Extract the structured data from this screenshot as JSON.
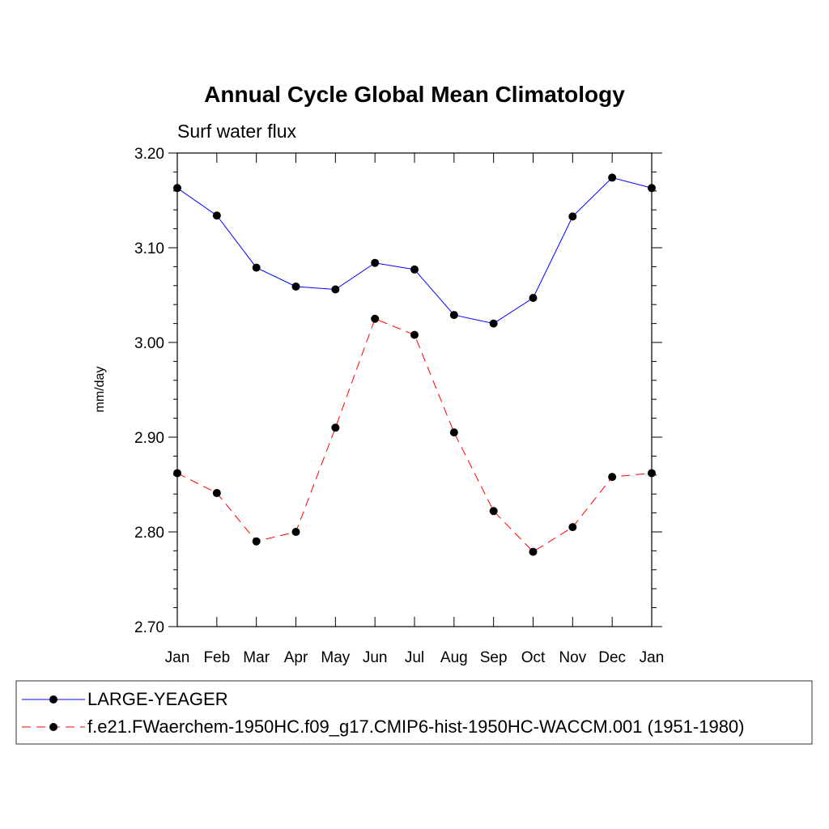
{
  "chart_data": {
    "type": "line",
    "title": "Annual Cycle Global Mean Climatology",
    "subtitle": "Surf water flux",
    "xlabel": "",
    "ylabel": "mm/day",
    "categories": [
      "Jan",
      "Feb",
      "Mar",
      "Apr",
      "May",
      "Jun",
      "Jul",
      "Aug",
      "Sep",
      "Oct",
      "Nov",
      "Dec",
      "Jan"
    ],
    "ylim": [
      2.7,
      3.2
    ],
    "yticks": [
      "2.70",
      "2.80",
      "2.90",
      "3.00",
      "3.10",
      "3.20"
    ],
    "grid": false,
    "legend_position": "bottom",
    "series": [
      {
        "name": "LARGE-YEAGER",
        "color": "#0000ff",
        "dash": "solid",
        "values": [
          3.163,
          3.134,
          3.079,
          3.059,
          3.056,
          3.084,
          3.077,
          3.029,
          3.02,
          3.047,
          3.133,
          3.174,
          3.163
        ]
      },
      {
        "name": "f.e21.FWaerchem-1950HC.f09_g17.CMIP6-hist-1950HC-WACCM.001 (1951-1980)",
        "color": "#ff0000",
        "dash": "dashed",
        "values": [
          2.862,
          2.841,
          2.79,
          2.8,
          2.91,
          3.025,
          3.008,
          2.905,
          2.822,
          2.779,
          2.805,
          2.858,
          2.862
        ]
      }
    ]
  }
}
